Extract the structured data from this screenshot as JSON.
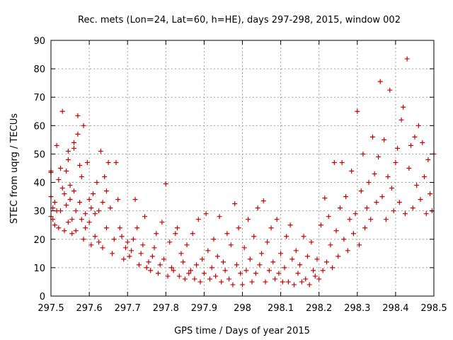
{
  "chart_data": {
    "type": "scatter",
    "title": "Rec. mets (Lon=24, Lat=60, h=HE), days 297-298, 2015, window 002",
    "xlabel": "GPS time / Days of year 2015",
    "ylabel": "STEC from uqrg / TECUs",
    "xlim": [
      297.5,
      298.5
    ],
    "ylim": [
      0,
      90
    ],
    "x_ticks": [
      297.5,
      297.6,
      297.7,
      297.8,
      297.9,
      298,
      298.1,
      298.2,
      298.3,
      298.4,
      298.5
    ],
    "x_tick_labels": [
      "297.5",
      "297.6",
      "297.7",
      "297.8",
      "297.9",
      "298",
      "298.1",
      "298.2",
      "298.3",
      "298.4",
      "298.5"
    ],
    "y_ticks": [
      0,
      10,
      20,
      30,
      40,
      50,
      60,
      70,
      80,
      90
    ],
    "y_tick_labels": [
      "0",
      "10",
      "20",
      "30",
      "40",
      "50",
      "60",
      "70",
      "80",
      "90"
    ],
    "grid": true,
    "marker": "+",
    "color": "#cc0000",
    "points": [
      [
        297.5,
        44
      ],
      [
        297.5,
        43.5
      ],
      [
        297.5,
        35
      ],
      [
        297.5,
        28
      ],
      [
        297.505,
        31
      ],
      [
        297.505,
        27
      ],
      [
        297.51,
        25
      ],
      [
        297.51,
        33
      ],
      [
        297.515,
        53
      ],
      [
        297.515,
        30
      ],
      [
        297.52,
        41
      ],
      [
        297.52,
        24
      ],
      [
        297.525,
        45
      ],
      [
        297.525,
        30
      ],
      [
        297.53,
        65
      ],
      [
        297.53,
        38
      ],
      [
        297.535,
        36
      ],
      [
        297.535,
        23
      ],
      [
        297.54,
        44
      ],
      [
        297.54,
        32
      ],
      [
        297.545,
        48
      ],
      [
        297.545,
        26
      ],
      [
        297.545,
        51
      ],
      [
        297.55,
        39
      ],
      [
        297.55,
        34
      ],
      [
        297.555,
        27
      ],
      [
        297.555,
        22
      ],
      [
        297.56,
        52
      ],
      [
        297.56,
        54
      ],
      [
        297.56,
        37
      ],
      [
        297.565,
        30
      ],
      [
        297.565,
        23
      ],
      [
        297.57,
        63.5
      ],
      [
        297.57,
        57
      ],
      [
        297.575,
        46
      ],
      [
        297.575,
        33
      ],
      [
        297.58,
        42
      ],
      [
        297.58,
        27
      ],
      [
        297.585,
        60
      ],
      [
        297.585,
        20
      ],
      [
        297.59,
        29
      ],
      [
        297.59,
        24
      ],
      [
        297.595,
        47
      ],
      [
        297.6,
        34
      ],
      [
        297.6,
        26
      ],
      [
        297.605,
        31
      ],
      [
        297.605,
        18
      ],
      [
        297.61,
        36
      ],
      [
        297.615,
        29
      ],
      [
        297.615,
        21
      ],
      [
        297.62,
        40
      ],
      [
        297.625,
        30
      ],
      [
        297.625,
        19
      ],
      [
        297.63,
        51
      ],
      [
        297.635,
        33
      ],
      [
        297.635,
        17
      ],
      [
        297.64,
        42
      ],
      [
        297.645,
        37
      ],
      [
        297.645,
        24
      ],
      [
        297.65,
        47
      ],
      [
        297.655,
        31
      ],
      [
        297.66,
        15
      ],
      [
        297.665,
        20
      ],
      [
        297.67,
        47
      ],
      [
        297.675,
        34
      ],
      [
        297.68,
        24
      ],
      [
        297.685,
        21
      ],
      [
        297.69,
        13
      ],
      [
        297.695,
        17
      ],
      [
        297.7,
        19
      ],
      [
        297.705,
        14
      ],
      [
        297.71,
        16
      ],
      [
        297.715,
        20
      ],
      [
        297.72,
        34
      ],
      [
        297.725,
        24
      ],
      [
        297.73,
        11
      ],
      [
        297.735,
        15
      ],
      [
        297.74,
        18
      ],
      [
        297.745,
        28
      ],
      [
        297.75,
        10
      ],
      [
        297.755,
        12
      ],
      [
        297.76,
        9
      ],
      [
        297.765,
        14
      ],
      [
        297.77,
        17
      ],
      [
        297.775,
        22
      ],
      [
        297.78,
        8
      ],
      [
        297.785,
        11
      ],
      [
        297.79,
        26
      ],
      [
        297.795,
        13
      ],
      [
        297.8,
        39.5
      ],
      [
        297.805,
        7
      ],
      [
        297.81,
        19
      ],
      [
        297.815,
        10
      ],
      [
        297.82,
        9
      ],
      [
        297.825,
        22
      ],
      [
        297.83,
        24
      ],
      [
        297.835,
        7
      ],
      [
        297.84,
        15
      ],
      [
        297.845,
        12
      ],
      [
        297.85,
        6
      ],
      [
        297.855,
        18
      ],
      [
        297.86,
        8
      ],
      [
        297.865,
        9
      ],
      [
        297.87,
        22
      ],
      [
        297.875,
        6
      ],
      [
        297.88,
        11
      ],
      [
        297.885,
        27
      ],
      [
        297.89,
        5
      ],
      [
        297.895,
        13
      ],
      [
        297.9,
        8
      ],
      [
        297.905,
        29
      ],
      [
        297.91,
        16
      ],
      [
        297.915,
        6
      ],
      [
        297.92,
        10
      ],
      [
        297.925,
        20
      ],
      [
        297.93,
        7
      ],
      [
        297.935,
        14
      ],
      [
        297.94,
        28
      ],
      [
        297.945,
        5
      ],
      [
        297.95,
        12
      ],
      [
        297.955,
        9
      ],
      [
        297.96,
        22
      ],
      [
        297.965,
        6
      ],
      [
        297.97,
        18
      ],
      [
        297.975,
        4
      ],
      [
        297.98,
        32.5
      ],
      [
        297.985,
        11
      ],
      [
        297.99,
        24
      ],
      [
        297.995,
        8
      ],
      [
        298.0,
        4
      ],
      [
        298.005,
        17
      ],
      [
        298.01,
        9
      ],
      [
        298.015,
        27
      ],
      [
        298.02,
        13
      ],
      [
        298.025,
        5
      ],
      [
        298.03,
        21
      ],
      [
        298.035,
        8
      ],
      [
        298.04,
        31
      ],
      [
        298.045,
        11
      ],
      [
        298.05,
        15
      ],
      [
        298.055,
        33.5
      ],
      [
        298.06,
        5
      ],
      [
        298.065,
        19
      ],
      [
        298.07,
        9
      ],
      [
        298.075,
        24
      ],
      [
        298.08,
        12
      ],
      [
        298.085,
        6
      ],
      [
        298.09,
        27
      ],
      [
        298.095,
        8
      ],
      [
        298.1,
        15
      ],
      [
        298.105,
        5
      ],
      [
        298.11,
        10
      ],
      [
        298.115,
        21
      ],
      [
        298.12,
        5
      ],
      [
        298.125,
        25
      ],
      [
        298.13,
        13
      ],
      [
        298.135,
        4
      ],
      [
        298.14,
        16
      ],
      [
        298.145,
        8
      ],
      [
        298.15,
        11
      ],
      [
        298.155,
        5
      ],
      [
        298.16,
        21
      ],
      [
        298.165,
        6
      ],
      [
        298.17,
        14
      ],
      [
        298.175,
        4
      ],
      [
        298.18,
        19
      ],
      [
        298.185,
        9
      ],
      [
        298.19,
        7
      ],
      [
        298.195,
        13
      ],
      [
        298.2,
        6
      ],
      [
        298.205,
        25
      ],
      [
        298.21,
        9
      ],
      [
        298.215,
        34.5
      ],
      [
        298.22,
        12
      ],
      [
        298.225,
        28
      ],
      [
        298.23,
        18
      ],
      [
        298.235,
        10
      ],
      [
        298.24,
        47
      ],
      [
        298.245,
        23
      ],
      [
        298.25,
        14
      ],
      [
        298.255,
        31
      ],
      [
        298.26,
        47
      ],
      [
        298.265,
        20
      ],
      [
        298.27,
        35
      ],
      [
        298.275,
        16
      ],
      [
        298.28,
        27
      ],
      [
        298.285,
        44
      ],
      [
        298.29,
        22
      ],
      [
        298.295,
        29
      ],
      [
        298.3,
        65
      ],
      [
        298.305,
        18
      ],
      [
        298.31,
        37
      ],
      [
        298.315,
        50
      ],
      [
        298.32,
        24
      ],
      [
        298.325,
        31
      ],
      [
        298.33,
        40
      ],
      [
        298.335,
        27
      ],
      [
        298.34,
        56
      ],
      [
        298.345,
        43
      ],
      [
        298.35,
        33
      ],
      [
        298.355,
        49
      ],
      [
        298.36,
        75.5
      ],
      [
        298.365,
        35
      ],
      [
        298.37,
        55
      ],
      [
        298.375,
        27
      ],
      [
        298.38,
        42
      ],
      [
        298.385,
        72.5
      ],
      [
        298.39,
        38
      ],
      [
        298.395,
        30
      ],
      [
        298.4,
        47
      ],
      [
        298.405,
        52
      ],
      [
        298.41,
        33
      ],
      [
        298.415,
        62
      ],
      [
        298.42,
        66.5
      ],
      [
        298.425,
        29
      ],
      [
        298.43,
        83.5
      ],
      [
        298.435,
        45
      ],
      [
        298.44,
        53
      ],
      [
        298.445,
        31
      ],
      [
        298.45,
        56
      ],
      [
        298.455,
        39
      ],
      [
        298.46,
        60
      ],
      [
        298.465,
        34
      ],
      [
        298.47,
        54
      ],
      [
        298.475,
        42
      ],
      [
        298.48,
        29
      ],
      [
        298.485,
        48
      ],
      [
        298.49,
        36
      ],
      [
        298.495,
        30
      ],
      [
        298.5,
        50
      ]
    ]
  }
}
